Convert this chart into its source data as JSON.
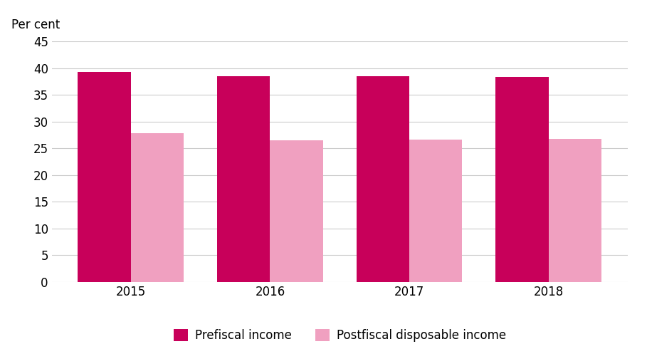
{
  "years": [
    "2015",
    "2016",
    "2017",
    "2018"
  ],
  "prefiscal": [
    39.3,
    38.5,
    38.5,
    38.3
  ],
  "postfiscal": [
    27.8,
    26.5,
    26.6,
    26.7
  ],
  "prefiscal_color": "#C8005A",
  "postfiscal_color": "#F0A0C0",
  "ylabel": "Per cent",
  "ylim": [
    0,
    45
  ],
  "yticks": [
    0,
    5,
    10,
    15,
    20,
    25,
    30,
    35,
    40,
    45
  ],
  "legend_labels": [
    "Prefiscal income",
    "Postfiscal disposable income"
  ],
  "bar_width": 0.38,
  "background_color": "#ffffff",
  "grid_color": "#cccccc",
  "tick_fontsize": 12,
  "label_fontsize": 12,
  "legend_fontsize": 12
}
